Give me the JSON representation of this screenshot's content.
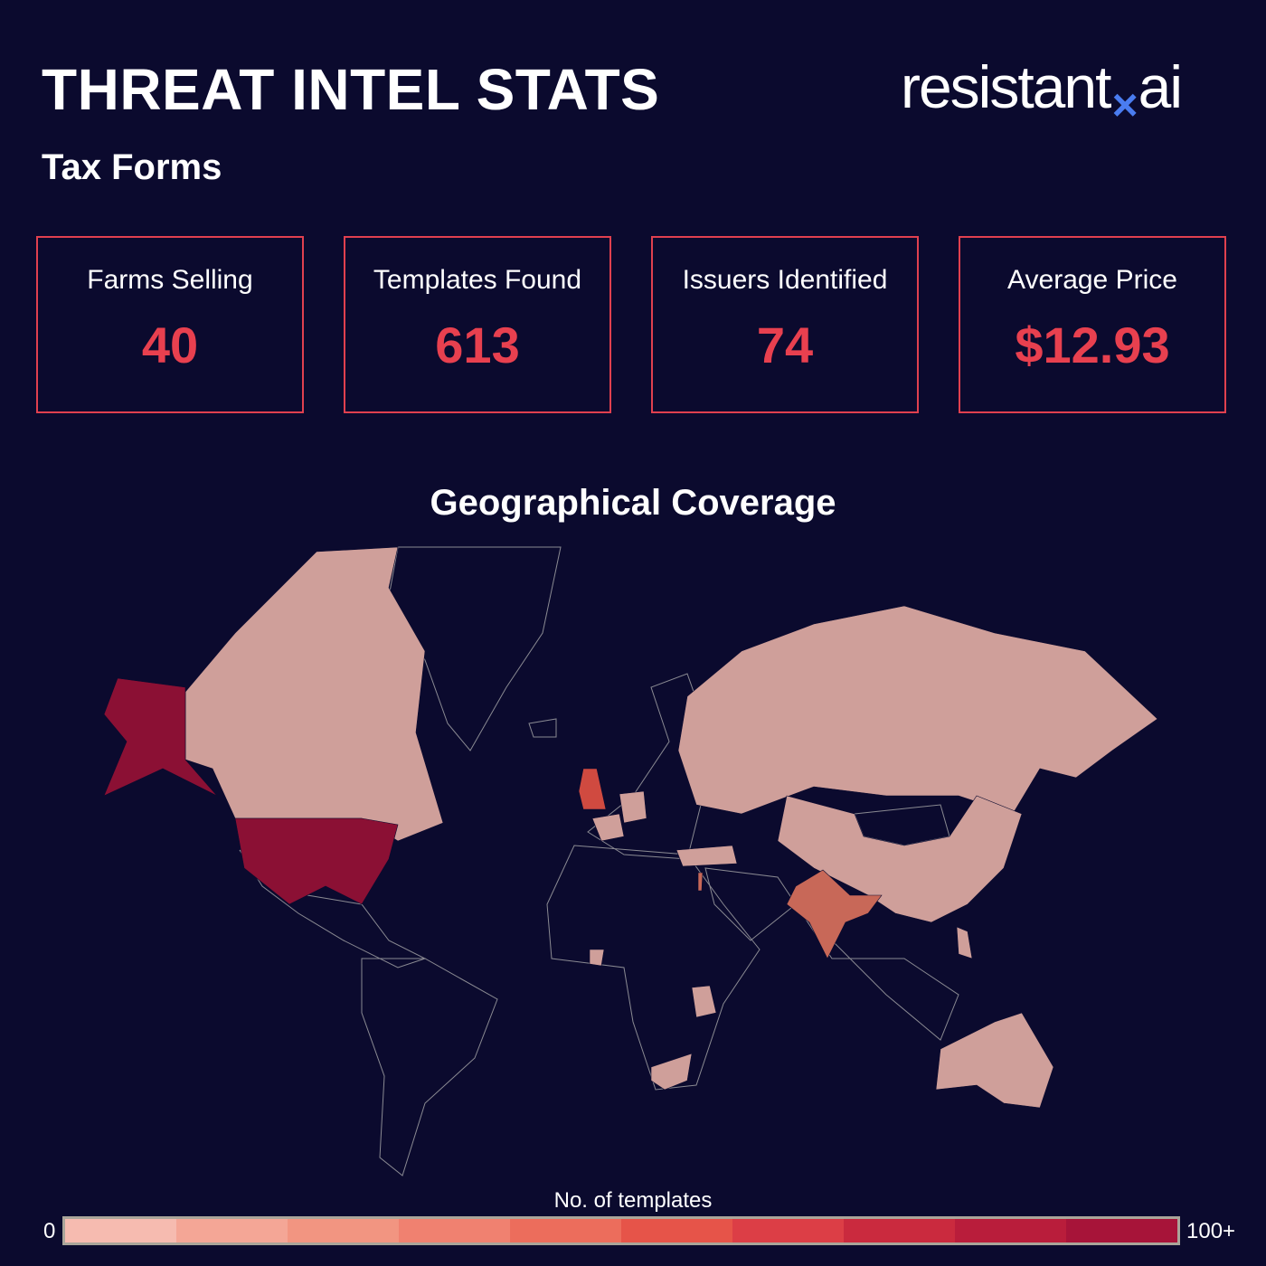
{
  "header": {
    "title": "THREAT INTEL STATS",
    "subtitle": "Tax Forms",
    "logo": {
      "text_left": "resistant",
      "text_mark": "×",
      "text_right": "ai",
      "mark_color": "#4a7cf0"
    }
  },
  "stats": [
    {
      "label": "Farms Selling",
      "value": "40"
    },
    {
      "label": "Templates Found",
      "value": "613"
    },
    {
      "label": "Issuers Identified",
      "value": "74"
    },
    {
      "label": "Average Price",
      "value": "$12.93"
    }
  ],
  "colors": {
    "background": "#0b0a2e",
    "accent": "#e8404f",
    "border": "#e0404f"
  },
  "chart_data": {
    "type": "choropleth",
    "title": "Geographical Coverage",
    "legend": {
      "title": "No. of templates",
      "min_label": "0",
      "max_label": "100+",
      "position": "bottom",
      "colors": [
        "#f6bbb0",
        "#f4a696",
        "#f29581",
        "#f08170",
        "#ec6d5c",
        "#e65449",
        "#dc3e46",
        "#ca2a3e",
        "#b91d3b",
        "#a71439"
      ]
    },
    "regions": [
      {
        "name": "United States",
        "tier": 10
      },
      {
        "name": "Canada",
        "tier": 1
      },
      {
        "name": "Russia",
        "tier": 1
      },
      {
        "name": "China",
        "tier": 1
      },
      {
        "name": "Australia",
        "tier": 1
      },
      {
        "name": "India",
        "tier": 4
      },
      {
        "name": "United Kingdom",
        "tier": 6
      },
      {
        "name": "Germany",
        "tier": 1
      },
      {
        "name": "France",
        "tier": 1
      },
      {
        "name": "Turkey",
        "tier": 1
      },
      {
        "name": "Nigeria",
        "tier": 1
      },
      {
        "name": "Kenya",
        "tier": 1
      },
      {
        "name": "South Africa",
        "tier": 1
      },
      {
        "name": "Philippines",
        "tier": 1
      },
      {
        "name": "Israel",
        "tier": 4
      }
    ]
  }
}
